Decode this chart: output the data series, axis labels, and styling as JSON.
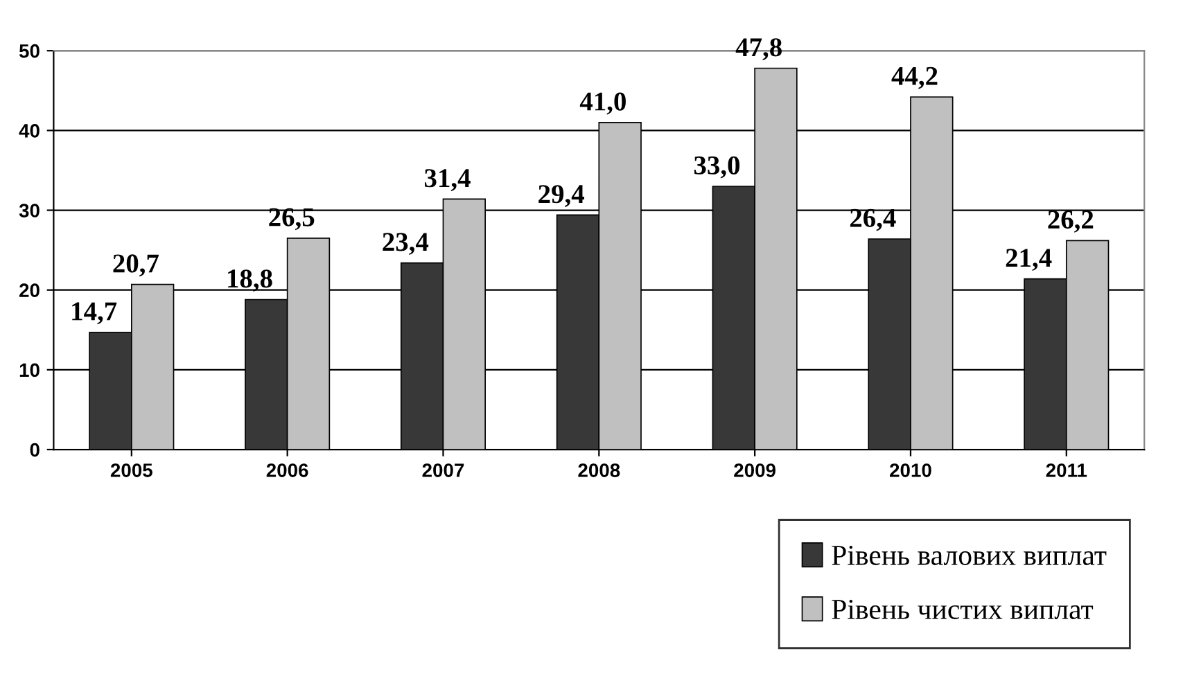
{
  "chart_data": {
    "type": "bar",
    "categories": [
      "2005",
      "2006",
      "2007",
      "2008",
      "2009",
      "2010",
      "2011"
    ],
    "series": [
      {
        "name": "Рівень валових виплат",
        "color": "#383838",
        "values": [
          14.7,
          18.8,
          23.4,
          29.4,
          33.0,
          26.4,
          21.4
        ],
        "value_labels": [
          "14,7",
          "18,8",
          "23,4",
          "29,4",
          "33,0",
          "26,4",
          "21,4"
        ]
      },
      {
        "name": "Рівень чистих виплат",
        "color": "#c0c0c0",
        "values": [
          20.7,
          26.5,
          31.4,
          41.0,
          47.8,
          44.2,
          26.2
        ],
        "value_labels": [
          "20,7",
          "26,5",
          "31,4",
          "41,0",
          "47,8",
          "44,2",
          "26,2"
        ]
      }
    ],
    "ylim": [
      0,
      50
    ],
    "yticks": [
      0,
      10,
      20,
      30,
      40,
      50
    ],
    "grid": "y",
    "legend": "bottom right"
  }
}
